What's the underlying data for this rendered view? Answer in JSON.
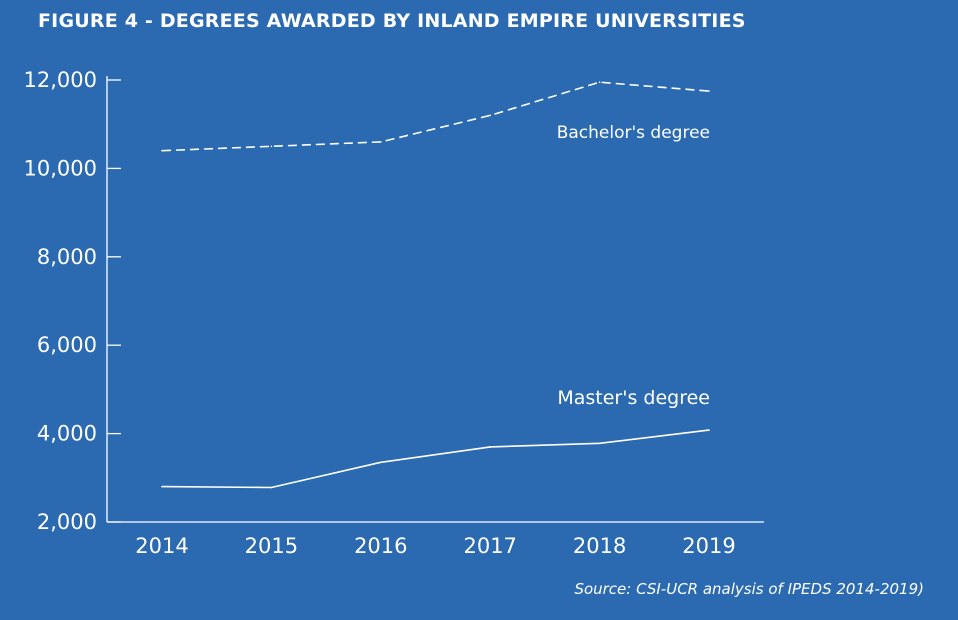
{
  "title": "FIGURE 4 - DEGREES AWARDED BY INLAND EMPIRE UNIVERSITIES",
  "source": "Source: CSI-UCR analysis of IPEDS 2014-2019)",
  "colors": {
    "background": "#2b6ab1",
    "foreground": "#ffffff"
  },
  "chart_data": {
    "type": "line",
    "title": "FIGURE 4 - DEGREES AWARDED BY INLAND EMPIRE UNIVERSITIES",
    "xlabel": "",
    "ylabel": "",
    "x": [
      "2014",
      "2015",
      "2016",
      "2017",
      "2018",
      "2019"
    ],
    "ylim": [
      2000,
      12000
    ],
    "yticks": [
      2000,
      4000,
      6000,
      8000,
      10000,
      12000
    ],
    "ytick_labels": [
      "2,000",
      "4,000",
      "6,000",
      "8,000",
      "10,000",
      "12,000"
    ],
    "grid": false,
    "legend": "none; series labeled directly on the lines",
    "series": [
      {
        "name": "Bachelor's degree",
        "style": "dashed",
        "values": [
          10400,
          10500,
          10600,
          11200,
          11950,
          11750
        ]
      },
      {
        "name": "Master's degree",
        "style": "solid",
        "values": [
          2800,
          2780,
          3350,
          3700,
          3780,
          4080
        ]
      }
    ]
  }
}
